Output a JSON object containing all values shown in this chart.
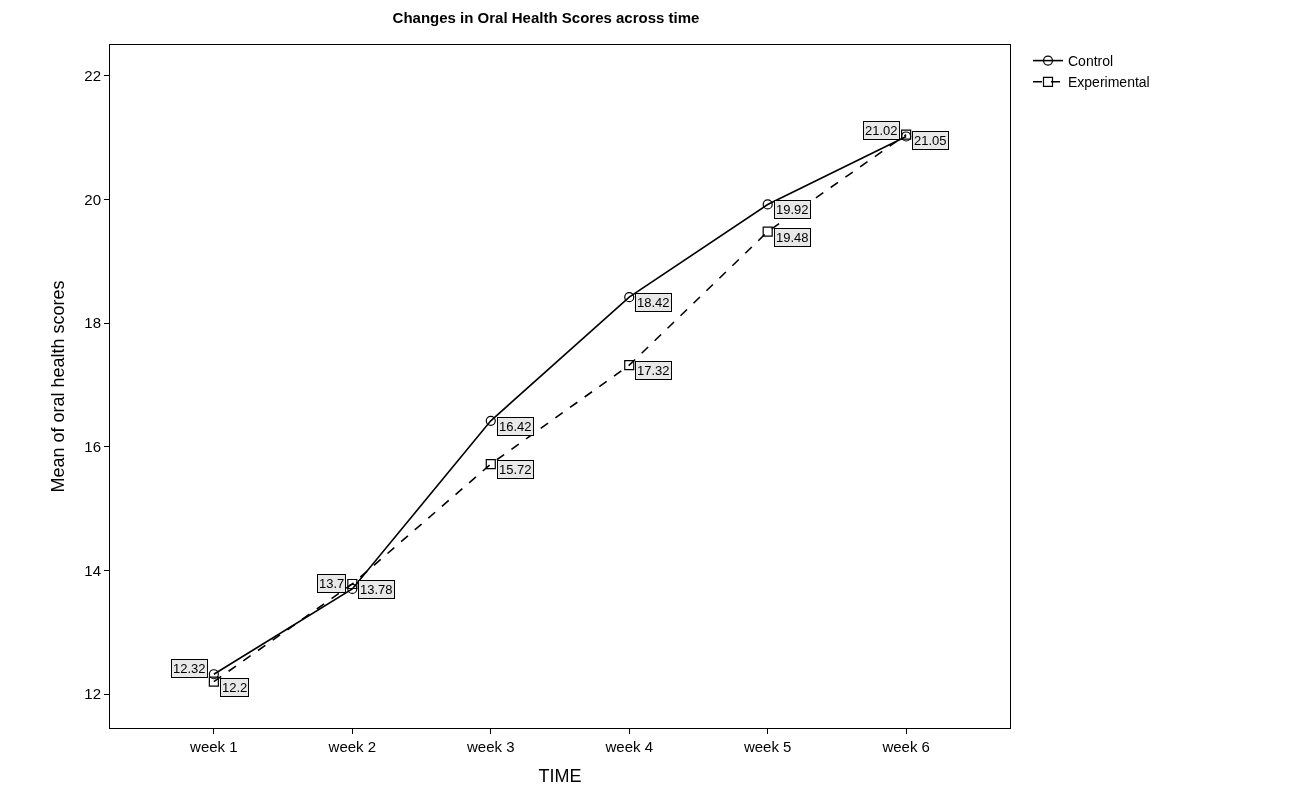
{
  "chart_data": {
    "type": "line",
    "title": "Changes in Oral Health Scores across time",
    "xlabel": "TIME",
    "ylabel": "Mean of oral health scores",
    "categories": [
      "week 1",
      "week 2",
      "week 3",
      "week 4",
      "week 5",
      "week 6"
    ],
    "series": [
      {
        "name": "Control",
        "color": "#000000",
        "values": [
          12.32,
          13.7,
          16.42,
          18.42,
          19.92,
          21.02
        ],
        "line_style": "solid",
        "marker": "circle"
      },
      {
        "name": "Experimental",
        "color": "#000000",
        "values": [
          12.2,
          13.78,
          15.72,
          17.32,
          19.48,
          21.05
        ],
        "line_style": "dashed",
        "marker": "square"
      }
    ],
    "ylim": [
      11.45,
      22.5
    ],
    "yticks": [
      12,
      14,
      16,
      18,
      20,
      22
    ],
    "legend": "top right",
    "data_labels": true
  }
}
